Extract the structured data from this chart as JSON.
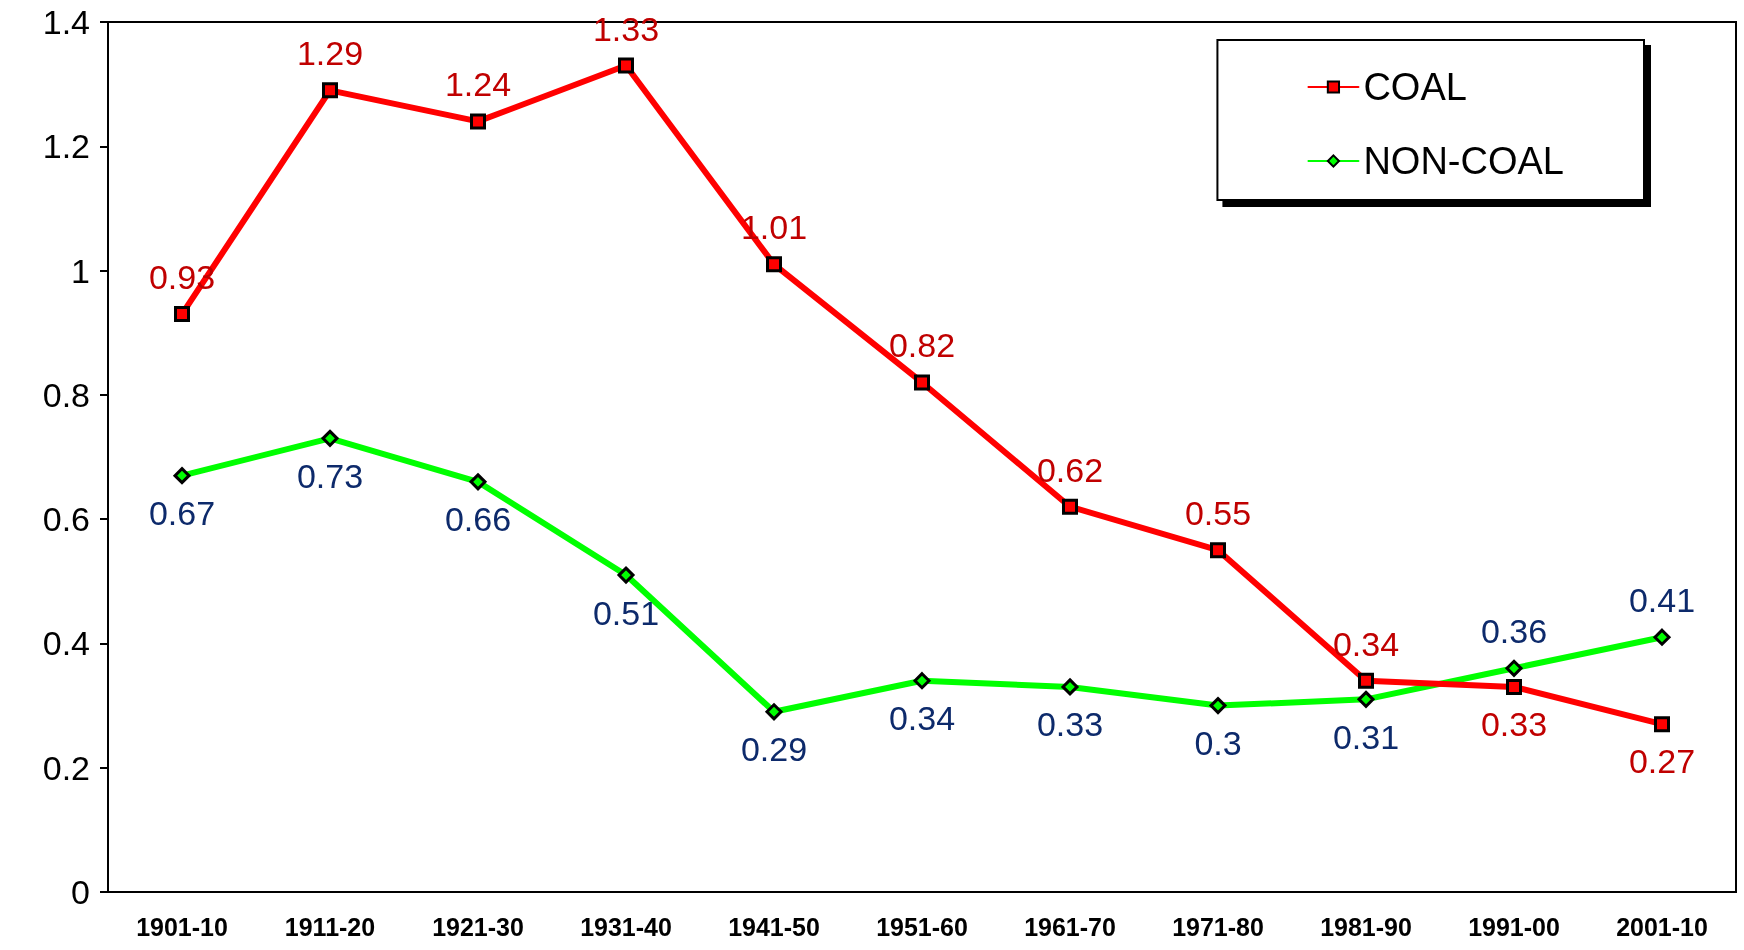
{
  "chart_data": {
    "type": "line",
    "categories": [
      "1901-10",
      "1911-20",
      "1921-30",
      "1931-40",
      "1941-50",
      "1951-60",
      "1961-70",
      "1971-80",
      "1981-90",
      "1991-00",
      "2001-10"
    ],
    "series": [
      {
        "name": "COAL",
        "color": "#ff0000",
        "marker": "square",
        "values": [
          0.93,
          1.29,
          1.24,
          1.33,
          1.01,
          0.82,
          0.62,
          0.55,
          0.34,
          0.33,
          0.27
        ]
      },
      {
        "name": "NON-COAL",
        "color": "#00ff00",
        "marker": "diamond",
        "values": [
          0.67,
          0.73,
          0.66,
          0.51,
          0.29,
          0.34,
          0.33,
          0.3,
          0.31,
          0.36,
          0.41
        ]
      }
    ],
    "ylim": [
      0,
      1.4
    ],
    "yticks": [
      0,
      0.2,
      0.4,
      0.6,
      0.8,
      1,
      1.2,
      1.4
    ],
    "data_labels": true,
    "legend": "top right",
    "grid": false,
    "line_style": "solid"
  }
}
